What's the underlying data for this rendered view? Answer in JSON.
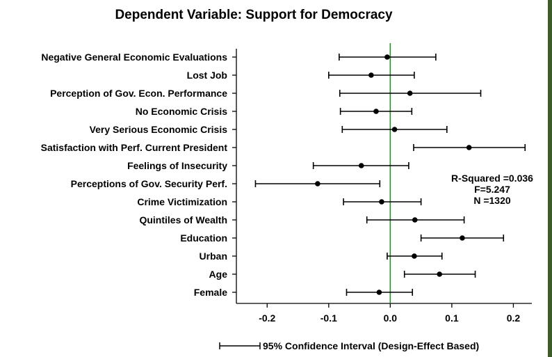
{
  "chart_data": {
    "type": "coefficient-plot",
    "title": "Dependent Variable: Support for Democracy",
    "xlabel": "",
    "ylabel": "",
    "xlim": [
      -0.25,
      0.23
    ],
    "xticks": [
      -0.2,
      -0.1,
      0.0,
      0.1,
      0.2
    ],
    "xtick_labels": [
      "-0.2",
      "-0.1",
      "0.0",
      "0.1",
      "0.2"
    ],
    "reference_line": 0,
    "reference_line_color": "#1a9a1a",
    "grid": false,
    "categories": [
      "Negative General Economic Evaluations",
      "Lost Job",
      "Perception of Gov. Econ. Performance",
      "No Economic Crisis",
      "Very Serious Economic Crisis",
      "Satisfaction with Perf. Current President",
      "Feelings of Insecurity",
      "Perceptions of Gov. Security Perf.",
      "Crime Victimization",
      "Quintiles of Wealth",
      "Education",
      "Urban",
      "Age",
      "Female"
    ],
    "series": [
      {
        "estimates": [
          -0.005,
          -0.031,
          0.032,
          -0.023,
          0.007,
          0.128,
          -0.047,
          -0.118,
          -0.014,
          0.04,
          0.117,
          0.039,
          0.08,
          -0.018
        ],
        "lower": [
          -0.083,
          -0.1,
          -0.082,
          -0.081,
          -0.078,
          0.038,
          -0.125,
          -0.219,
          -0.076,
          -0.038,
          0.05,
          -0.005,
          0.023,
          -0.071
        ],
        "upper": [
          0.074,
          0.039,
          0.147,
          0.035,
          0.092,
          0.219,
          0.03,
          -0.017,
          0.05,
          0.12,
          0.184,
          0.084,
          0.138,
          0.036
        ]
      }
    ],
    "legend": {
      "label": "95% Confidence Interval (Design-Effect Based)",
      "placement": "bottom-center"
    },
    "annotations": [
      "R-Squared =0.036",
      "F=5.247",
      "N =1320"
    ]
  },
  "colors": {
    "frame_accent": "#3d5a2a",
    "marks": "#000000"
  }
}
